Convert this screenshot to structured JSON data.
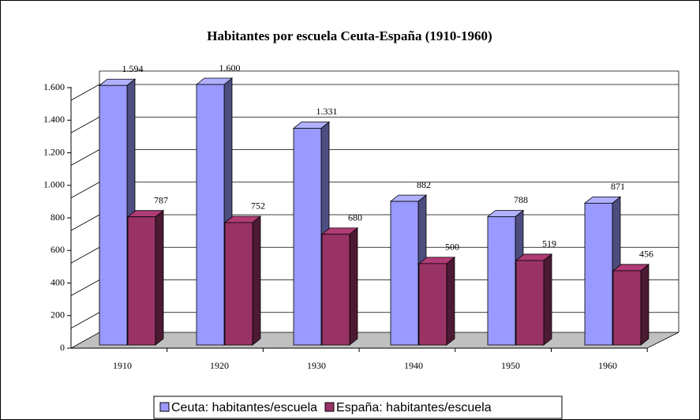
{
  "chart_data": {
    "type": "bar3d",
    "title": "Habitantes por escuela Ceuta-España (1910-1960)",
    "categories": [
      "1910",
      "1920",
      "1930",
      "1940",
      "1950",
      "1960"
    ],
    "series": [
      {
        "name": "Ceuta: habitantes/escuela",
        "color": "#9999ff",
        "values": [
          1594,
          1600,
          1331,
          882,
          788,
          871
        ],
        "value_labels": [
          "1.594",
          "1.600",
          "1.331",
          "882",
          "788",
          "871"
        ]
      },
      {
        "name": "España: habitantes/escuela",
        "color": "#993366",
        "values": [
          787,
          752,
          680,
          500,
          519,
          456
        ],
        "value_labels": [
          "787",
          "752",
          "680",
          "500",
          "519",
          "456"
        ]
      }
    ],
    "ylim": [
      0,
      1600
    ],
    "yticks": [
      0,
      200,
      400,
      600,
      800,
      {
        "value": 1000,
        "label": "1.000"
      },
      {
        "value": 1200,
        "label": "1.200"
      },
      {
        "value": 1400,
        "label": "1.400"
      },
      {
        "value": 1600,
        "label": "1.600"
      }
    ],
    "grid": true,
    "legend": "bottom"
  }
}
